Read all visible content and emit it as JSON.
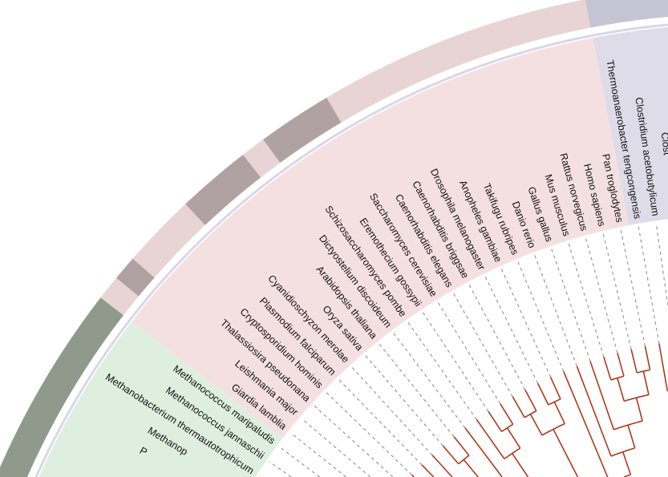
{
  "groups": [
    {
      "id": "archaea",
      "bg": "#dfefdf",
      "ring": "#8f9a8d"
    },
    {
      "id": "eukaryota",
      "bg": "#f5e0e1",
      "ring_light": "#e8d4d4",
      "ring_dark": "#b0a2a2"
    },
    {
      "id": "bacteria",
      "bg": "#dedce9",
      "ring": "#c5c4d5"
    }
  ],
  "colors": {
    "branch": "#b0391c",
    "dash": "#999999",
    "separator": "#d9d6ea"
  },
  "leaves": [
    {
      "name": "P",
      "group": 0,
      "ring": "group"
    },
    {
      "name": "Methanop",
      "group": 0,
      "ring": "group"
    },
    {
      "name": "Methanobacterium thermautotrophicum",
      "group": 0,
      "ring": "group"
    },
    {
      "name": "Methanococcus jannaschii",
      "group": 0,
      "ring": "group"
    },
    {
      "name": "Methanococcus maripaludis",
      "group": 0,
      "ring": "group"
    },
    {
      "name": "Giardia lamblia",
      "group": 1,
      "ring": "light"
    },
    {
      "name": "Leishmania major",
      "group": 1,
      "ring": "dark"
    },
    {
      "name": "Thalassiosira pseudonana",
      "group": 1,
      "ring": "light"
    },
    {
      "name": "Cryptosporidium hominis",
      "group": 1,
      "ring": "light"
    },
    {
      "name": "Plasmodium falciparum",
      "group": 1,
      "ring": "light"
    },
    {
      "name": "Cyanidioschyzon merolae",
      "group": 1,
      "ring": "dark"
    },
    {
      "name": "Oryza sativa",
      "group": 1,
      "ring": "dark"
    },
    {
      "name": "Arabidopsis thaliana",
      "group": 1,
      "ring": "dark"
    },
    {
      "name": "Dictyostelium discoideum",
      "group": 1,
      "ring": "light"
    },
    {
      "name": "Schizosaccharomyces pombe",
      "group": 1,
      "ring": "dark"
    },
    {
      "name": "Eremothecium gossypii",
      "group": 1,
      "ring": "dark"
    },
    {
      "name": "Saccharomyces cerevisiae",
      "group": 1,
      "ring": "dark"
    },
    {
      "name": "Caenorhabditis elegans",
      "group": 1,
      "ring": "light"
    },
    {
      "name": "Caenorhabditis briggsae",
      "group": 1,
      "ring": "light"
    },
    {
      "name": "Drosophila melanogaster",
      "group": 1,
      "ring": "light"
    },
    {
      "name": "Anopheles gambiae",
      "group": 1,
      "ring": "light"
    },
    {
      "name": "Takifugu rubripes",
      "group": 1,
      "ring": "light"
    },
    {
      "name": "Danio rerio",
      "group": 1,
      "ring": "light"
    },
    {
      "name": "Gallus gallus",
      "group": 1,
      "ring": "light"
    },
    {
      "name": "Mus musculus",
      "group": 1,
      "ring": "light"
    },
    {
      "name": "Rattus norvegicus",
      "group": 1,
      "ring": "light"
    },
    {
      "name": "Homo sapiens",
      "group": 1,
      "ring": "light"
    },
    {
      "name": "Pan troglodytes",
      "group": 1,
      "ring": "light"
    },
    {
      "name": "Thermoanaerobacter tengcongensis",
      "group": 2,
      "ring": "group"
    },
    {
      "name": "Clostridium acetobutylicum",
      "group": 2,
      "ring": "group"
    },
    {
      "name": "Clost",
      "group": 2,
      "ring": "group"
    }
  ],
  "tree": [
    [
      0,
      [
        1,
        [
          2,
          [
            3,
            4
          ]
        ]
      ]
    ],
    [
      5,
      6,
      [
        [
          7,
          [
            8,
            9
          ]
        ],
        [
          10,
          [
            11,
            12
          ]
        ]
      ],
      [
        13,
        [
          [
            14,
            [
              15,
              16
            ]
          ],
          [
            [
              [
                17,
                18
              ],
              [
                19,
                20
              ]
            ],
            [
              21,
              [
                22,
                [
                  23,
                  [
                    [
                      24,
                      25
                    ],
                    [
                      26,
                      27
                    ]
                  ]
                ]
              ]
            ]
          ]
        ]
      ]
    ],
    [
      28,
      [
        29,
        30
      ]
    ]
  ]
}
